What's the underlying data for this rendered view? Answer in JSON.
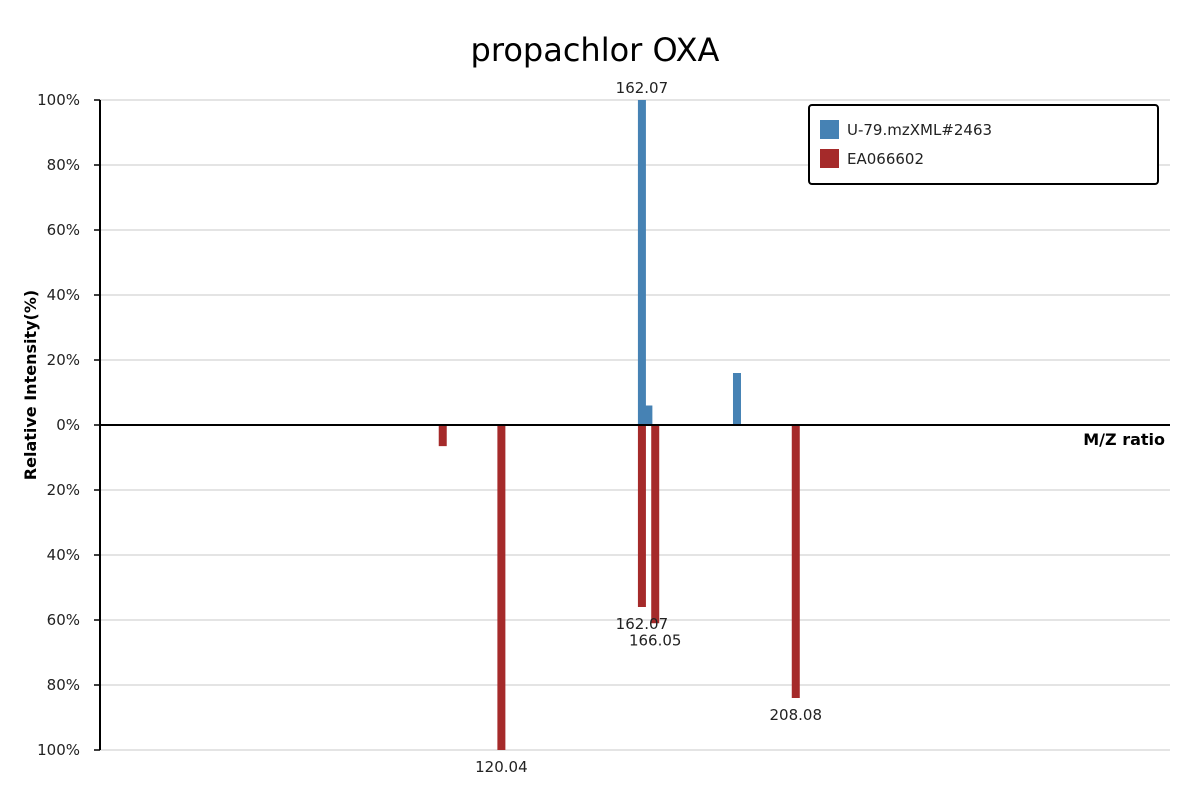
{
  "chart_data": {
    "type": "bar",
    "title": "propachlor OXA",
    "xlabel": "M/Z ratio",
    "ylabel": "Relative Intensity(%)",
    "xlim": [
      0,
      320
    ],
    "ylim": [
      -100,
      100
    ],
    "y_ticks": [
      {
        "value": 100,
        "label": "100%"
      },
      {
        "value": 80,
        "label": "80%"
      },
      {
        "value": 60,
        "label": "60%"
      },
      {
        "value": 40,
        "label": "40%"
      },
      {
        "value": 20,
        "label": "20%"
      },
      {
        "value": 0,
        "label": "0%"
      },
      {
        "value": -20,
        "label": "20%"
      },
      {
        "value": -40,
        "label": "40%"
      },
      {
        "value": -60,
        "label": "60%"
      },
      {
        "value": -80,
        "label": "80%"
      },
      {
        "value": -100,
        "label": "100%"
      }
    ],
    "legend": {
      "position": "top-right"
    },
    "series": [
      {
        "name": "U-79.mzXML#2463",
        "color": "#4682b4",
        "direction": "up",
        "peaks": [
          {
            "mz": 162.07,
            "intensity": 100,
            "label": "162.07"
          },
          {
            "mz": 164.0,
            "intensity": 6,
            "label": ""
          },
          {
            "mz": 190.5,
            "intensity": 16,
            "label": ""
          }
        ]
      },
      {
        "name": "EA066602",
        "color": "#a52a2a",
        "direction": "down",
        "peaks": [
          {
            "mz": 102.5,
            "intensity": 6.5,
            "label": ""
          },
          {
            "mz": 120.04,
            "intensity": 100,
            "label": "120.04"
          },
          {
            "mz": 162.07,
            "intensity": 56,
            "label": "162.07"
          },
          {
            "mz": 166.05,
            "intensity": 61,
            "label": "166.05"
          },
          {
            "mz": 208.08,
            "intensity": 84,
            "label": "208.08"
          }
        ]
      }
    ]
  }
}
